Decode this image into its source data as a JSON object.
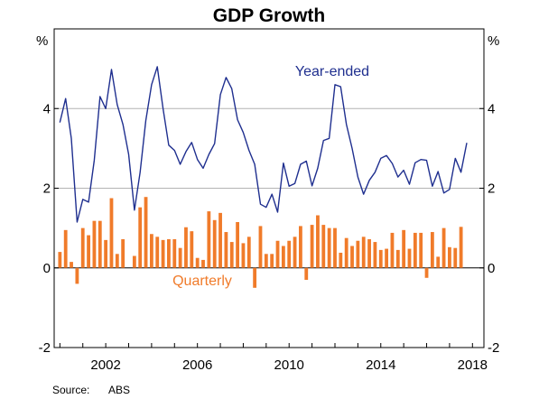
{
  "chart_data": {
    "type": "bar+line",
    "title": "GDP Growth",
    "unit_left": "%",
    "unit_right": "%",
    "ylim": [
      -2,
      6
    ],
    "yticks": [
      -2,
      0,
      2,
      4
    ],
    "ytick_labels": [
      "-2",
      "0",
      "2",
      "4"
    ],
    "xlim": [
      1999.75,
      2018.5
    ],
    "xticks": [
      2002,
      2006,
      2010,
      2014,
      2018
    ],
    "xtick_labels": [
      "2002",
      "2006",
      "2010",
      "2014",
      "2018"
    ],
    "grid": "horizontal",
    "colors": {
      "year_ended": "#1f2f8f",
      "quarterly": "#f07b2a",
      "grid": "#b3b3b3",
      "frame": "#000000"
    },
    "series": [
      {
        "name": "Year-ended",
        "type": "line",
        "x": [
          2000.0,
          2000.25,
          2000.5,
          2000.75,
          2001.0,
          2001.25,
          2001.5,
          2001.75,
          2002.0,
          2002.25,
          2002.5,
          2002.75,
          2003.0,
          2003.25,
          2003.5,
          2003.75,
          2004.0,
          2004.25,
          2004.5,
          2004.75,
          2005.0,
          2005.25,
          2005.5,
          2005.75,
          2006.0,
          2006.25,
          2006.5,
          2006.75,
          2007.0,
          2007.25,
          2007.5,
          2007.75,
          2008.0,
          2008.25,
          2008.5,
          2008.75,
          2009.0,
          2009.25,
          2009.5,
          2009.75,
          2010.0,
          2010.25,
          2010.5,
          2010.75,
          2011.0,
          2011.25,
          2011.5,
          2011.75,
          2012.0,
          2012.25,
          2012.5,
          2012.75,
          2013.0,
          2013.25,
          2013.5,
          2013.75,
          2014.0,
          2014.25,
          2014.5,
          2014.75,
          2015.0,
          2015.25,
          2015.5,
          2015.75,
          2016.0,
          2016.25,
          2016.5,
          2016.75,
          2017.0,
          2017.25,
          2017.5,
          2017.75,
          2018.0
        ],
        "values": [
          3.65,
          4.25,
          3.25,
          1.15,
          1.72,
          1.65,
          2.7,
          4.3,
          4.0,
          4.98,
          4.1,
          3.6,
          2.85,
          1.45,
          2.4,
          3.7,
          4.6,
          5.05,
          4.0,
          3.08,
          2.95,
          2.6,
          2.92,
          3.15,
          2.72,
          2.5,
          2.85,
          3.12,
          4.35,
          4.78,
          4.5,
          3.72,
          3.4,
          2.95,
          2.6,
          1.6,
          1.52,
          1.85,
          1.4,
          2.63,
          2.05,
          2.12,
          2.6,
          2.68,
          2.06,
          2.5,
          3.2,
          3.25,
          4.6,
          4.55,
          3.6,
          3.0,
          2.28,
          1.85,
          2.2,
          2.4,
          2.75,
          2.82,
          2.62,
          2.28,
          2.45,
          2.1,
          2.64,
          2.72,
          2.7,
          2.05,
          2.42,
          1.88,
          1.97,
          2.75,
          2.4,
          3.14,
          null
        ],
        "label": "Year-ended"
      },
      {
        "name": "Quarterly",
        "type": "bar",
        "x": [
          2000.0,
          2000.25,
          2000.5,
          2000.75,
          2001.0,
          2001.25,
          2001.5,
          2001.75,
          2002.0,
          2002.25,
          2002.5,
          2002.75,
          2003.0,
          2003.25,
          2003.5,
          2003.75,
          2004.0,
          2004.25,
          2004.5,
          2004.75,
          2005.0,
          2005.25,
          2005.5,
          2005.75,
          2006.0,
          2006.25,
          2006.5,
          2006.75,
          2007.0,
          2007.25,
          2007.5,
          2007.75,
          2008.0,
          2008.25,
          2008.5,
          2008.75,
          2009.0,
          2009.25,
          2009.5,
          2009.75,
          2010.0,
          2010.25,
          2010.5,
          2010.75,
          2011.0,
          2011.25,
          2011.5,
          2011.75,
          2012.0,
          2012.25,
          2012.5,
          2012.75,
          2013.0,
          2013.25,
          2013.5,
          2013.75,
          2014.0,
          2014.25,
          2014.5,
          2014.75,
          2015.0,
          2015.25,
          2015.5,
          2015.75,
          2016.0,
          2016.25,
          2016.5,
          2016.75,
          2017.0,
          2017.25,
          2017.5,
          2017.75,
          2018.0
        ],
        "values": [
          0.4,
          0.95,
          0.15,
          -0.4,
          1.0,
          0.82,
          1.18,
          1.18,
          0.7,
          1.75,
          0.35,
          0.72,
          0,
          0.3,
          1.52,
          1.78,
          0.85,
          0.78,
          0.7,
          0.72,
          0.72,
          0.5,
          1.02,
          0.92,
          0.25,
          0.2,
          1.42,
          1.2,
          1.38,
          0.9,
          0.65,
          1.15,
          0.62,
          0.78,
          -0.5,
          1.05,
          0.35,
          0.35,
          0.68,
          0.55,
          0.68,
          0.78,
          1.05,
          -0.3,
          1.08,
          1.32,
          1.08,
          1.0,
          1.0,
          0.38,
          0.75,
          0.55,
          0.68,
          0.78,
          0.72,
          0.65,
          0.45,
          0.48,
          0.88,
          0.45,
          0.95,
          0.48,
          0.88,
          0.88,
          -0.25,
          0.9,
          0.28,
          1.0,
          0.52,
          0.5,
          1.03,
          null,
          null
        ],
        "label": "Quarterly"
      }
    ],
    "source_label": "Source:",
    "source_value": "ABS"
  }
}
